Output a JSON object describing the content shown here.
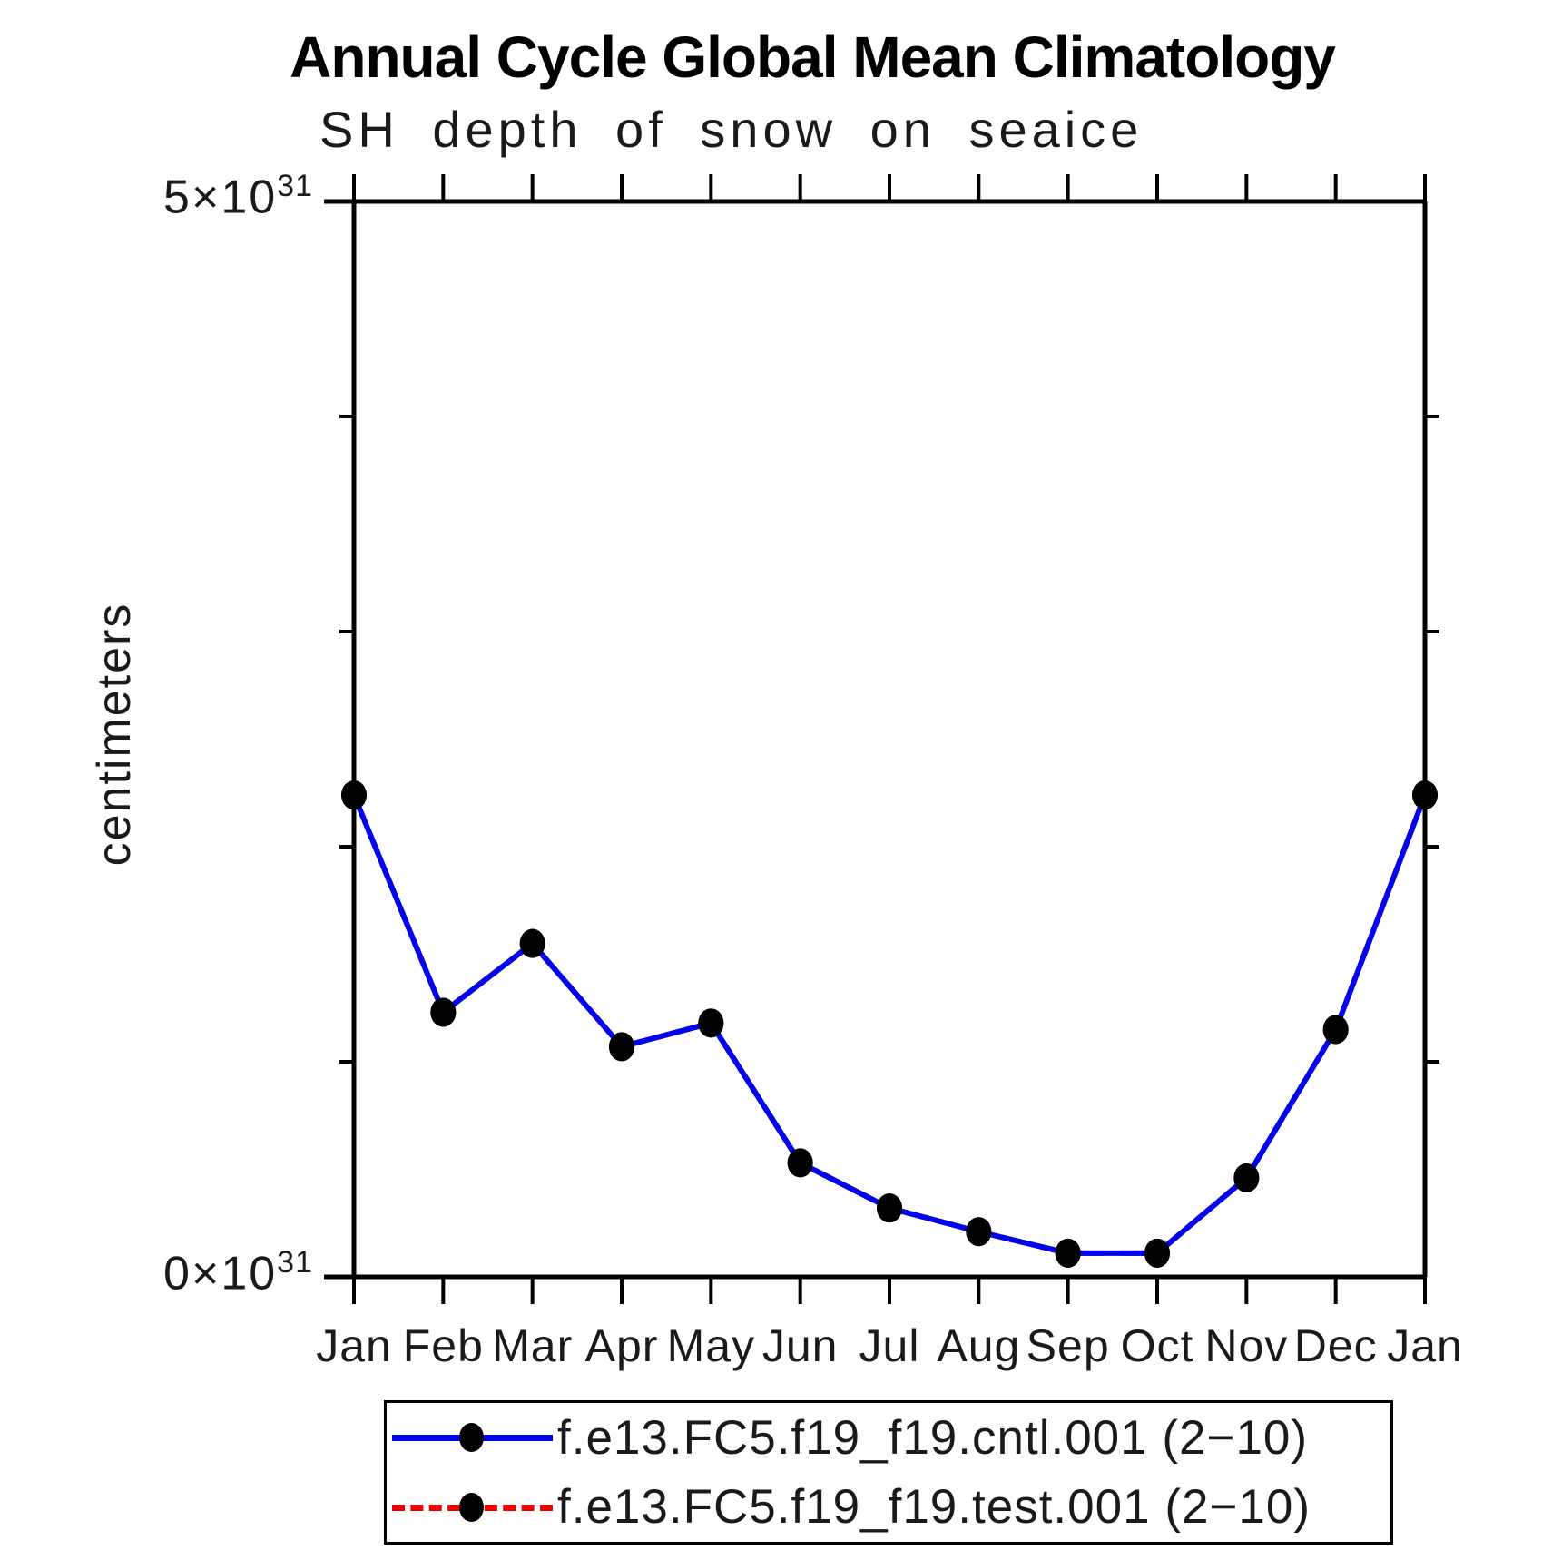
{
  "title": "Annual Cycle Global Mean Climatology",
  "subtitle": "SH depth of snow on seaice",
  "y_axis": {
    "label": "centimeters",
    "max_label_base": "5×10",
    "max_label_exp": "31",
    "min_label_base": "0×10",
    "min_label_exp": "31"
  },
  "legend": {
    "entries": [
      {
        "label": "f.e13.FC5.f19_f19.cntl.001 (2−10)",
        "color": "#0202ee",
        "line_style": "solid",
        "marker": "black-circle"
      },
      {
        "label": "f.e13.FC5.f19_f19.test.001 (2−10)",
        "color": "#f20000",
        "line_style": "dashed",
        "marker": "black-circle"
      }
    ]
  },
  "chart_data": {
    "type": "line",
    "title": "Annual Cycle Global Mean Climatology",
    "subtitle": "SH depth of snow on seaice",
    "xlabel": "",
    "ylabel": "centimeters",
    "categories": [
      "Jan",
      "Feb",
      "Mar",
      "Apr",
      "May",
      "Jun",
      "Jul",
      "Aug",
      "Sep",
      "Oct",
      "Nov",
      "Dec",
      "Jan"
    ],
    "ylim_1e31": [
      0,
      5
    ],
    "y_major_ticks_1e31": [
      0,
      5
    ],
    "y_minor_tick_interval_1e31": 1,
    "values_unit": "centimeters ×10^31",
    "grid": false,
    "legend_position": "below-plot",
    "series": [
      {
        "name": "f.e13.FC5.f19_f19.cntl.001 (2−10)",
        "color": "#0202ee",
        "line_style": "solid",
        "marker": "black-circle",
        "values_1e31": [
          2.24,
          1.23,
          1.55,
          1.07,
          1.18,
          0.53,
          0.32,
          0.21,
          0.11,
          0.11,
          0.46,
          1.15,
          2.24
        ]
      },
      {
        "name": "f.e13.FC5.f19_f19.test.001 (2−10)",
        "color": "#f20000",
        "line_style": "dashed",
        "marker": "black-circle",
        "values_1e31": [
          2.24,
          1.23,
          1.55,
          1.07,
          1.18,
          0.53,
          0.32,
          0.21,
          0.11,
          0.11,
          0.46,
          1.15,
          2.24
        ],
        "note": "dashed red curve coincides with control curve and is hidden beneath the blue line"
      }
    ]
  }
}
